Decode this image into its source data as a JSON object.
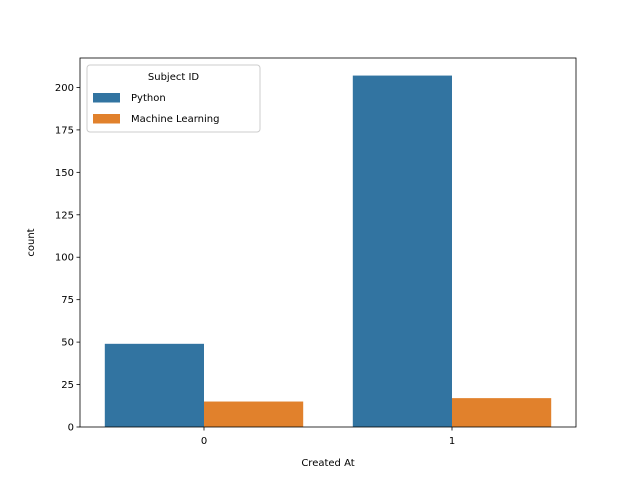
{
  "chart_data": {
    "type": "bar",
    "title": "",
    "xlabel": "Created At",
    "ylabel": "count",
    "categories": [
      "0",
      "1"
    ],
    "series": [
      {
        "name": "Python",
        "values": [
          49,
          207
        ],
        "color": "#3274a1"
      },
      {
        "name": "Machine Learning",
        "values": [
          15,
          17
        ],
        "color": "#e1812c"
      }
    ],
    "ylim": [
      0,
      217.35
    ],
    "yticks": [
      0,
      25,
      50,
      75,
      100,
      125,
      150,
      175,
      200
    ],
    "grid": false,
    "legend": {
      "title": "Subject ID",
      "placement": "top-left"
    }
  }
}
